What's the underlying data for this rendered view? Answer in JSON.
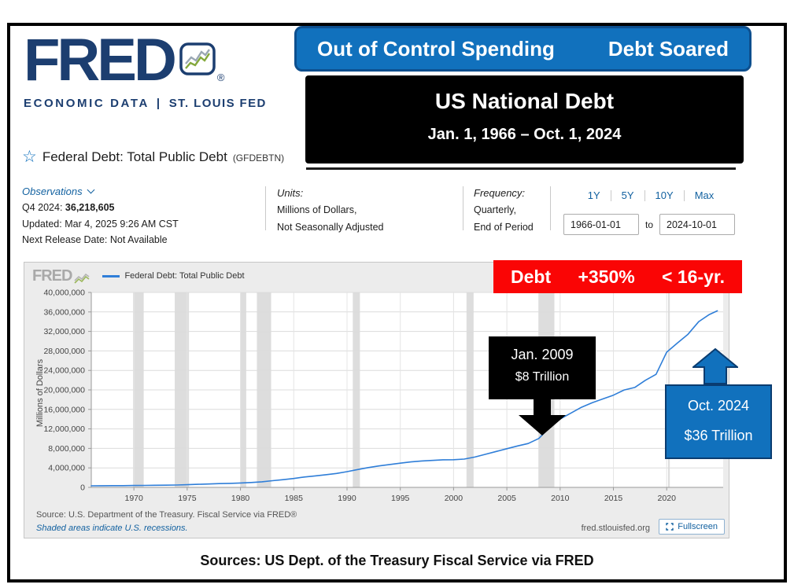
{
  "header": {
    "logo": {
      "wordmark": "FRED",
      "registered": "®",
      "tagline_left": "ECONOMIC DATA",
      "tagline_sep": "|",
      "tagline_right": "ST. LOUIS FED"
    },
    "blue_banner": {
      "left": "Out of Control Spending",
      "right": "Debt Soared"
    },
    "black_banner": {
      "title": "US National Debt",
      "subtitle": "Jan. 1, 1966 – Oct. 1, 2024"
    }
  },
  "series": {
    "title": "Federal Debt: Total Public Debt",
    "code": "(GFDEBTN)"
  },
  "info_bar": {
    "observations_label": "Observations",
    "latest_label": "Q4 2024:",
    "latest_value": "36,218,605",
    "updated": "Updated: Mar 4, 2025 9:26 AM CST",
    "next_release": "Next Release Date: Not Available",
    "units_label": "Units:",
    "units_line1": "Millions of Dollars,",
    "units_line2": "Not Seasonally Adjusted",
    "frequency_label": "Frequency:",
    "frequency_line1": "Quarterly,",
    "frequency_line2": "End of Period",
    "ranges": [
      "1Y",
      "5Y",
      "10Y",
      "Max"
    ],
    "date_start": "1966-01-01",
    "date_to_label": "to",
    "date_end": "2024-10-01"
  },
  "chart": {
    "watermark": "FRED",
    "red_banner": {
      "parts": [
        "Debt",
        "+350%",
        "< 16-yr."
      ]
    },
    "annotation_2009": {
      "line1": "Jan. 2009",
      "line2": "$8 Trillion"
    },
    "annotation_2024": {
      "line1": "Oct. 2024",
      "line2": "$36 Trillion"
    },
    "source": "Source: U.S. Department of the Treasury. Fiscal Service via FRED®",
    "recession_note": "Shaded areas indicate U.S. recessions.",
    "site": "fred.stlouisfed.org",
    "fullscreen_label": "Fullscreen"
  },
  "footer": {
    "caption": "Sources: US Dept. of the Treasury Fiscal Service via FRED"
  },
  "chart_data": {
    "type": "line",
    "title": "Federal Debt: Total Public Debt (GFDEBTN)",
    "ylabel": "Millions of Dollars",
    "ylim": [
      0,
      40000000
    ],
    "ytick_step": 4000000,
    "xlim": [
      1966,
      2025.3
    ],
    "xticks": [
      1970,
      1975,
      1980,
      1985,
      1990,
      1995,
      2000,
      2005,
      2010,
      2015,
      2020
    ],
    "grid": true,
    "legend_position": "top-left",
    "series": [
      {
        "name": "Federal Debt: Total Public Debt",
        "color": "#2f7ed8",
        "x": [
          1966,
          1967,
          1968,
          1969,
          1970,
          1971,
          1972,
          1973,
          1974,
          1975,
          1976,
          1977,
          1978,
          1979,
          1980,
          1981,
          1982,
          1983,
          1984,
          1985,
          1986,
          1987,
          1988,
          1989,
          1990,
          1991,
          1992,
          1993,
          1994,
          1995,
          1996,
          1997,
          1998,
          1999,
          2000,
          2001,
          2002,
          2003,
          2004,
          2005,
          2006,
          2007,
          2008,
          2009,
          2010,
          2011,
          2012,
          2013,
          2014,
          2015,
          2016,
          2017,
          2018,
          2019,
          2020,
          2021,
          2022,
          2023,
          2024,
          2024.75
        ],
        "y": [
          323000,
          334000,
          350000,
          361000,
          381000,
          408000,
          437000,
          459000,
          480000,
          542000,
          629000,
          701000,
          772000,
          827000,
          908000,
          998000,
          1142000,
          1377000,
          1573000,
          1823000,
          2125000,
          2350000,
          2602000,
          2857000,
          3233000,
          3665000,
          4065000,
          4411000,
          4693000,
          4974000,
          5225000,
          5413000,
          5526000,
          5656000,
          5674000,
          5807000,
          6228000,
          6783000,
          7379000,
          7933000,
          8507000,
          9008000,
          10025000,
          12311000,
          14025000,
          15223000,
          16433000,
          17352000,
          18141000,
          18922000,
          19977000,
          20493000,
          21974000,
          23201000,
          27748000,
          29617000,
          31420000,
          34001000,
          35465000,
          36218605
        ]
      }
    ],
    "recessions": [
      [
        1969.92,
        1970.92
      ],
      [
        1973.83,
        1975.17
      ],
      [
        1980.0,
        1980.54
      ],
      [
        1981.54,
        1982.88
      ],
      [
        1990.54,
        1991.21
      ],
      [
        2001.21,
        2001.88
      ],
      [
        2007.96,
        2009.46
      ],
      [
        2020.13,
        2020.29
      ]
    ]
  }
}
